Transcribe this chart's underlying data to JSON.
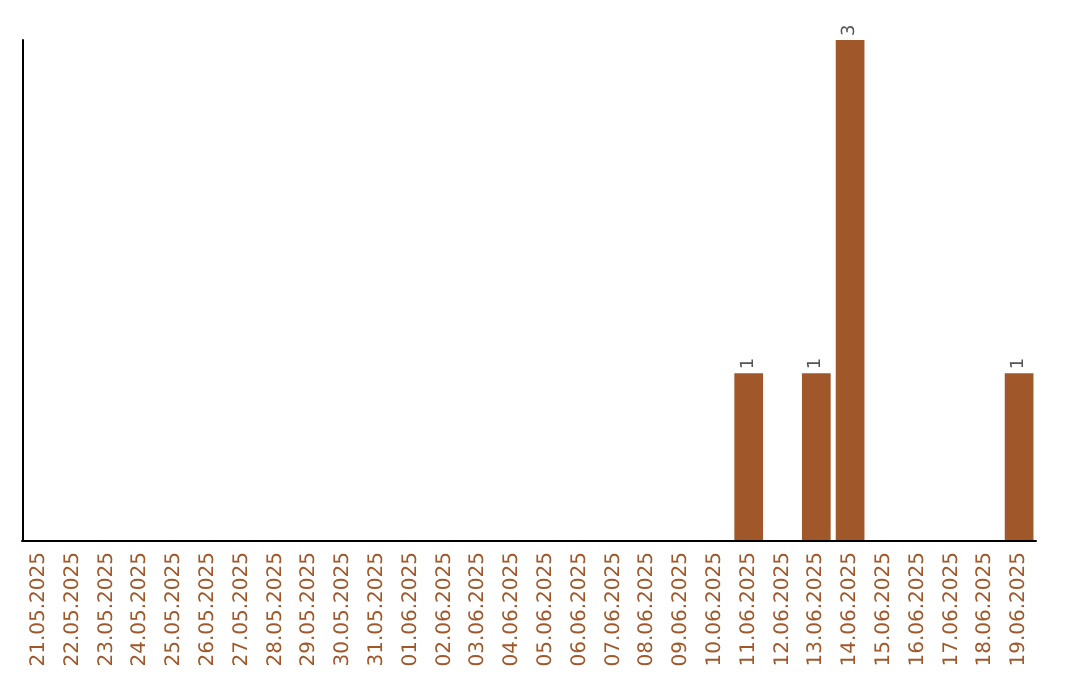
{
  "chart_data": {
    "type": "bar",
    "categories": [
      "21.05.2025",
      "22.05.2025",
      "23.05.2025",
      "24.05.2025",
      "25.05.2025",
      "26.05.2025",
      "27.05.2025",
      "28.05.2025",
      "29.05.2025",
      "30.05.2025",
      "31.05.2025",
      "01.06.2025",
      "02.06.2025",
      "03.06.2025",
      "04.06.2025",
      "05.06.2025",
      "06.06.2025",
      "07.06.2025",
      "08.06.2025",
      "09.06.2025",
      "10.06.2025",
      "11.06.2025",
      "12.06.2025",
      "13.06.2025",
      "14.06.2025",
      "15.06.2025",
      "16.06.2025",
      "17.06.2025",
      "18.06.2025",
      "19.06.2025"
    ],
    "values": [
      null,
      null,
      null,
      null,
      null,
      null,
      null,
      null,
      null,
      null,
      null,
      null,
      null,
      null,
      null,
      null,
      null,
      null,
      null,
      null,
      null,
      1,
      null,
      1,
      3,
      null,
      null,
      null,
      null,
      1
    ],
    "value_labels": [
      null,
      null,
      null,
      null,
      null,
      null,
      null,
      null,
      null,
      null,
      null,
      null,
      null,
      null,
      null,
      null,
      null,
      null,
      null,
      null,
      null,
      "1",
      null,
      "1",
      "3",
      null,
      null,
      null,
      null,
      "1"
    ],
    "color": "#a0582a",
    "tick_labels": "x",
    "grid": false
  }
}
